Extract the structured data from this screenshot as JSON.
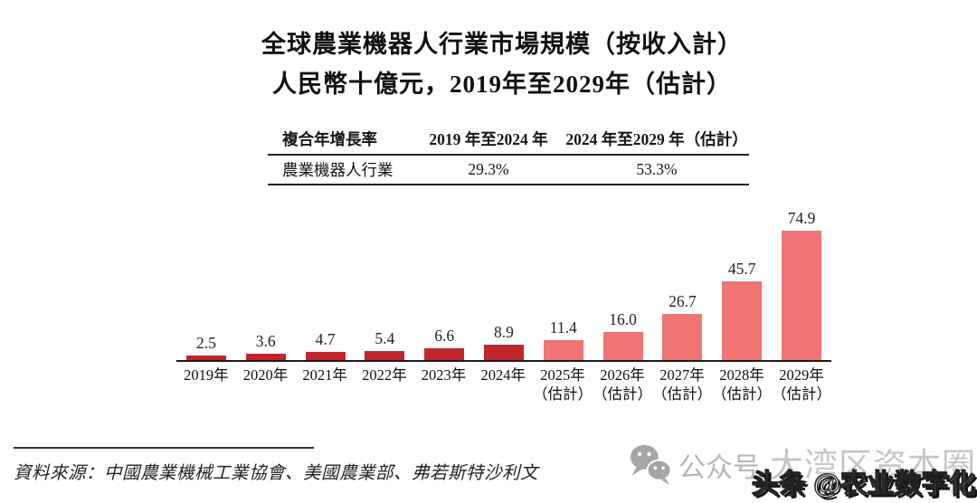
{
  "title": {
    "line1": "全球農業機器人行業市場規模（按收入計）",
    "line2": "人民幣十億元，2019年至2029年（估計）"
  },
  "cagr_table": {
    "header": [
      "複合年增長率",
      "2019 年至2024 年",
      "2024 年至2029 年（估計）"
    ],
    "row": [
      "農業機器人行業",
      "29.3%",
      "53.3%"
    ]
  },
  "chart_data": {
    "type": "bar",
    "title": "全球農業機器人行業市場規模（按收入計）",
    "ylabel": "人民幣十億元",
    "categories": [
      "2019年",
      "2020年",
      "2021年",
      "2022年",
      "2023年",
      "2024年",
      "2025年（估計）",
      "2026年（估計）",
      "2027年（估計）",
      "2028年（估計）",
      "2029年（估計）"
    ],
    "values": [
      2.5,
      3.6,
      4.7,
      5.4,
      6.6,
      8.9,
      11.4,
      16.0,
      26.7,
      45.7,
      74.9
    ],
    "value_labels": [
      "2.5",
      "3.6",
      "4.7",
      "5.4",
      "6.6",
      "8.9",
      "11.4",
      "16.0",
      "26.7",
      "45.7",
      "74.9"
    ],
    "estimate_from_index": 6,
    "estimate_note": "（估計）",
    "colors": {
      "historical": "#c2262c",
      "estimate": "#f07472"
    },
    "ylim": [
      0,
      80
    ],
    "grid": false,
    "data_labels": true,
    "legend": "none"
  },
  "footnote": {
    "source": "資料來源：中國農業機械工業協會、美國農業部、弗若斯特沙利文"
  },
  "watermarks": {
    "wechat_icon": "wechat-icon",
    "wechat_label": "公众号",
    "account_name": "大湾区资本圈",
    "toutiao_label": "头条 @农业数字化",
    "gray_color": "#b6b6b6"
  }
}
